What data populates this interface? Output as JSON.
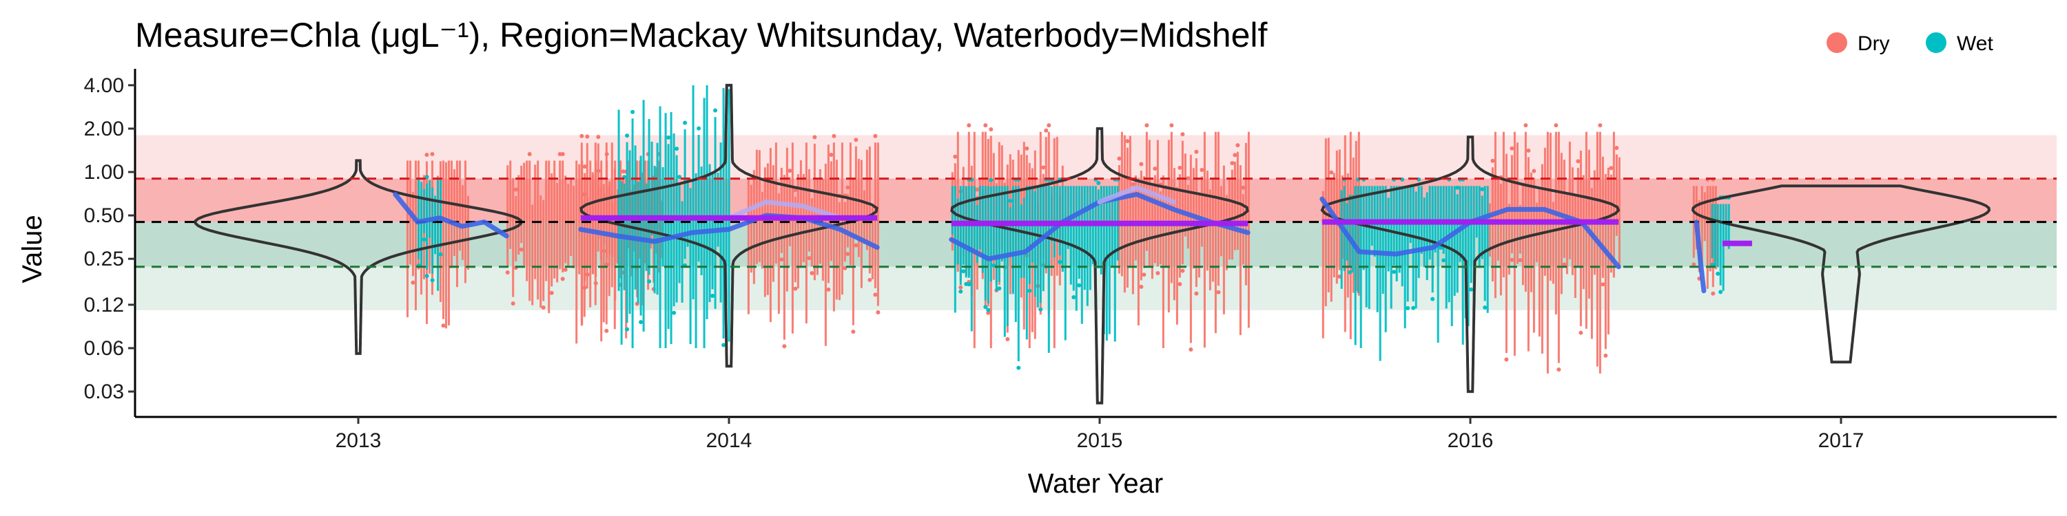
{
  "chart_data": {
    "type": "scatter",
    "title": "Measure=Chla (μgL⁻¹), Region=Mackay Whitsunday, Waterbody=Midshelf",
    "xlabel": "Water Year",
    "ylabel": "Value",
    "y_scale": "log2",
    "ylim": [
      0.02,
      5.2
    ],
    "y_ticks": [
      "0.03",
      "0.06",
      "0.12",
      "0.25",
      "0.50",
      "1.00",
      "2.00",
      "4.00"
    ],
    "y_tick_values": [
      0.03,
      0.06,
      0.12,
      0.25,
      0.5,
      1.0,
      2.0,
      4.0
    ],
    "categories": [
      "2013",
      "2014",
      "2015",
      "2016",
      "2017"
    ],
    "grid": false,
    "legend_position": "top-right",
    "legend": [
      {
        "name": "Dry",
        "color": "#F8766D"
      },
      {
        "name": "Wet",
        "color": "#00BFC4"
      }
    ],
    "reference_bands": [
      {
        "from": 0.9,
        "to": 1.8,
        "color": "#FCE4E4"
      },
      {
        "from": 0.45,
        "to": 0.9,
        "color": "#F9B3B3"
      },
      {
        "from": 0.22,
        "to": 0.45,
        "color": "#BFDCD0"
      },
      {
        "from": 0.11,
        "to": 0.22,
        "color": "#E3EFE9"
      }
    ],
    "reference_lines": [
      {
        "value": 0.9,
        "color": "#D7191C",
        "style": "dashed"
      },
      {
        "value": 0.45,
        "color": "#000000",
        "style": "dashed"
      },
      {
        "value": 0.22,
        "color": "#1B7837",
        "style": "dashed"
      }
    ],
    "series": [
      {
        "name": "Dry",
        "color": "#F8766D",
        "clusters": [
          {
            "year": 2013,
            "segments": [
              [
                0.13,
                0.3
              ],
              [
                0.4,
                0.82
              ]
            ],
            "range": [
              0.06,
              1.2
            ]
          },
          {
            "year": 2014,
            "segments": [
              [
                -0.4,
                -0.3
              ],
              [
                0.05,
                0.4
              ]
            ],
            "range": [
              0.06,
              1.6
            ]
          },
          {
            "year": 2015,
            "segments": [
              [
                -0.4,
                -0.1
              ],
              [
                0.05,
                0.4
              ]
            ],
            "range": [
              0.06,
              1.9
            ]
          },
          {
            "year": 2016,
            "segments": [
              [
                -0.4,
                -0.3
              ],
              [
                0.05,
                0.4
              ]
            ],
            "range": [
              0.04,
              1.9
            ]
          },
          {
            "year": 2017,
            "segments": [
              [
                -0.4,
                -0.34
              ]
            ],
            "range": [
              0.06,
              0.8
            ]
          }
        ]
      },
      {
        "name": "Wet",
        "color": "#00BFC4",
        "clusters": [
          {
            "year": 2013,
            "segments": [
              [
                0.16,
                0.22
              ]
            ],
            "range": [
              0.15,
              0.9
            ]
          },
          {
            "year": 2014,
            "segments": [
              [
                -0.3,
                0.0
              ]
            ],
            "range": [
              0.06,
              4.0
            ]
          },
          {
            "year": 2015,
            "segments": [
              [
                -0.4,
                0.05
              ]
            ],
            "range": [
              0.025,
              0.8
            ]
          },
          {
            "year": 2016,
            "segments": [
              [
                -0.35,
                0.05
              ]
            ],
            "range": [
              0.035,
              0.8
            ]
          },
          {
            "year": 2017,
            "segments": [
              [
                -0.35,
                -0.3
              ]
            ],
            "range": [
              0.06,
              0.6
            ]
          }
        ]
      }
    ],
    "violins": [
      {
        "year": 2013,
        "mode": 0.45,
        "min": 0.055,
        "max": 1.2,
        "peak": 0.44,
        "tail": 0.01
      },
      {
        "year": 2014,
        "mode": 0.55,
        "min": 0.045,
        "max": 4.0,
        "peak": 0.4,
        "tail": 0.012
      },
      {
        "year": 2015,
        "mode": 0.55,
        "min": 0.025,
        "max": 2.0,
        "peak": 0.4,
        "tail": 0.012
      },
      {
        "year": 2016,
        "mode": 0.55,
        "min": 0.03,
        "max": 1.75,
        "peak": 0.4,
        "tail": 0.012
      },
      {
        "year": 2017,
        "mode": 0.55,
        "min": 0.048,
        "max": 0.8,
        "peak": 0.4,
        "tail": 0.05
      }
    ],
    "medians": [
      {
        "year": 2014,
        "value": 0.48,
        "from": -0.4,
        "to": 0.4
      },
      {
        "year": 2015,
        "value": 0.44,
        "from": -0.4,
        "to": 0.4
      },
      {
        "year": 2016,
        "value": 0.45,
        "from": -0.4,
        "to": 0.4
      },
      {
        "year": 2017,
        "value": 0.32,
        "from": -0.32,
        "to": -0.24
      }
    ],
    "trend_lines": [
      {
        "color": "#3C64E6",
        "opacity": 0.9,
        "points": [
          [
            2013.1,
            0.7
          ],
          [
            2013.16,
            0.45
          ],
          [
            2013.22,
            0.48
          ],
          [
            2013.28,
            0.42
          ],
          [
            2013.34,
            0.45
          ],
          [
            2013.4,
            0.36
          ]
        ]
      },
      {
        "color": "#3C64E6",
        "opacity": 0.9,
        "points": [
          [
            2013.6,
            0.4
          ],
          [
            2013.7,
            0.36
          ],
          [
            2013.8,
            0.33
          ],
          [
            2013.9,
            0.38
          ],
          [
            2014.0,
            0.4
          ],
          [
            2014.1,
            0.5
          ],
          [
            2014.2,
            0.48
          ],
          [
            2014.3,
            0.4
          ],
          [
            2014.4,
            0.3
          ]
        ]
      },
      {
        "color": "#3C64E6",
        "opacity": 0.9,
        "points": [
          [
            2014.6,
            0.34
          ],
          [
            2014.7,
            0.25
          ],
          [
            2014.8,
            0.28
          ],
          [
            2014.9,
            0.45
          ],
          [
            2015.0,
            0.62
          ],
          [
            2015.1,
            0.7
          ],
          [
            2015.2,
            0.55
          ],
          [
            2015.3,
            0.45
          ],
          [
            2015.4,
            0.38
          ]
        ]
      },
      {
        "color": "#3C64E6",
        "opacity": 0.9,
        "points": [
          [
            2015.6,
            0.65
          ],
          [
            2015.7,
            0.28
          ],
          [
            2015.8,
            0.27
          ],
          [
            2015.9,
            0.3
          ],
          [
            2016.0,
            0.45
          ],
          [
            2016.1,
            0.55
          ],
          [
            2016.2,
            0.55
          ],
          [
            2016.3,
            0.45
          ],
          [
            2016.4,
            0.22
          ]
        ]
      },
      {
        "color": "#3C64E6",
        "opacity": 0.9,
        "points": [
          [
            2016.61,
            0.45
          ],
          [
            2016.62,
            0.25
          ],
          [
            2016.63,
            0.15
          ]
        ]
      },
      {
        "color": "#B4AAF5",
        "opacity": 0.85,
        "points": [
          [
            2014.0,
            0.48
          ],
          [
            2014.1,
            0.62
          ],
          [
            2014.2,
            0.58
          ],
          [
            2014.3,
            0.48
          ]
        ]
      },
      {
        "color": "#B4AAF5",
        "opacity": 0.85,
        "points": [
          [
            2015.0,
            0.62
          ],
          [
            2015.1,
            0.78
          ],
          [
            2015.2,
            0.62
          ]
        ]
      }
    ]
  }
}
